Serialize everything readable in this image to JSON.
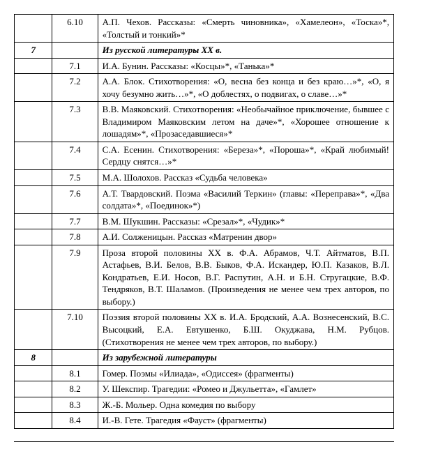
{
  "rows": [
    {
      "c1": "",
      "c2": "6.10",
      "c3": "А.П. Чехов. Рассказы: «Смерть чиновника», «Хамелеон», «Тоска»*, «Толстый и тонкий»*",
      "bold": false,
      "italic": false
    },
    {
      "c1": "7",
      "c2": "",
      "c3": "Из русской литературы XX в.",
      "bold": true,
      "italic": true
    },
    {
      "c1": "",
      "c2": "7.1",
      "c3": "И.А. Бунин. Рассказы: «Косцы»*, «Танька»*",
      "bold": false,
      "italic": false
    },
    {
      "c1": "",
      "c2": "7.2",
      "c3": "А.А. Блок. Стихотворения: «О, весна без конца и без краю…»*, «О, я хочу безумно жить…»*, «О доблестях, о подвигах, о славе…»*",
      "bold": false,
      "italic": false
    },
    {
      "c1": "",
      "c2": "7.3",
      "c3": "В.В. Маяковский. Стихотворения: «Необычайное приключение, бывшее с Владимиром Маяковским летом на даче»*, «Хорошее отношение к лошадям»*, «Прозаседавшиеся»*",
      "bold": false,
      "italic": false
    },
    {
      "c1": "",
      "c2": "7.4",
      "c3": "С.А. Есенин. Стихотворения: «Береза»*, «Пороша»*, «Край любимый! Сердцу снятся…»*",
      "bold": false,
      "italic": false
    },
    {
      "c1": "",
      "c2": "7.5",
      "c3": "М.А. Шолохов. Рассказ «Судьба человека»",
      "bold": false,
      "italic": false
    },
    {
      "c1": "",
      "c2": "7.6",
      "c3": "А.Т. Твардовский. Поэма «Василий Теркин» (главы: «Переправа»*, «Два солдата»*, «Поединок»*)",
      "bold": false,
      "italic": false
    },
    {
      "c1": "",
      "c2": "7.7",
      "c3": "В.М. Шукшин. Рассказы: «Срезал»*, «Чудик»*",
      "bold": false,
      "italic": false
    },
    {
      "c1": "",
      "c2": "7.8",
      "c3": "А.И. Солженицын. Рассказ «Матренин двор»",
      "bold": false,
      "italic": false
    },
    {
      "c1": "",
      "c2": "7.9",
      "c3": "Проза второй половины XX в. Ф.А. Абрамов, Ч.Т. Айтматов, В.П. Астафьев, В.И. Белов, В.В. Быков, Ф.А. Искандер, Ю.П. Казаков, В.Л. Кондратьев, Е.И. Носов, В.Г. Распутин, А.Н. и Б.Н. Стругацкие, В.Ф. Тендряков, В.Т. Шаламов. (Произведения не менее чем трех авторов, по выбору.)",
      "bold": false,
      "italic": false
    },
    {
      "c1": "",
      "c2": "7.10",
      "c3": "Поэзия второй половины XX в. И.А. Бродский, А.А. Вознесенский, В.С. Высоцкий, Е.А. Евтушенко, Б.Ш. Окуджава, Н.М. Рубцов. (Стихотворения не менее чем трех авторов, по выбору.)",
      "bold": false,
      "italic": false
    },
    {
      "c1": "8",
      "c2": "",
      "c3": "Из зарубежной литературы",
      "bold": true,
      "italic": true
    },
    {
      "c1": "",
      "c2": "8.1",
      "c3": "Гомер. Поэмы «Илиада», «Одиссея» (фрагменты)",
      "bold": false,
      "italic": false
    },
    {
      "c1": "",
      "c2": "8.2",
      "c3": "У. Шекспир. Трагедии: «Ромео и Джульетта», «Гамлет»",
      "bold": false,
      "italic": false
    },
    {
      "c1": "",
      "c2": "8.3",
      "c3": "Ж.-Б. Мольер. Одна комедия по выбору",
      "bold": false,
      "italic": false
    },
    {
      "c1": "",
      "c2": "8.4",
      "c3": "И.-В. Гете. Трагедия «Фауст» (фрагменты)",
      "bold": false,
      "italic": false
    }
  ],
  "columns": 3,
  "table_border_color": "#000000",
  "background_color": "#ffffff",
  "text_color": "#000000",
  "font_family": "Times New Roman",
  "font_size_pt": 10
}
